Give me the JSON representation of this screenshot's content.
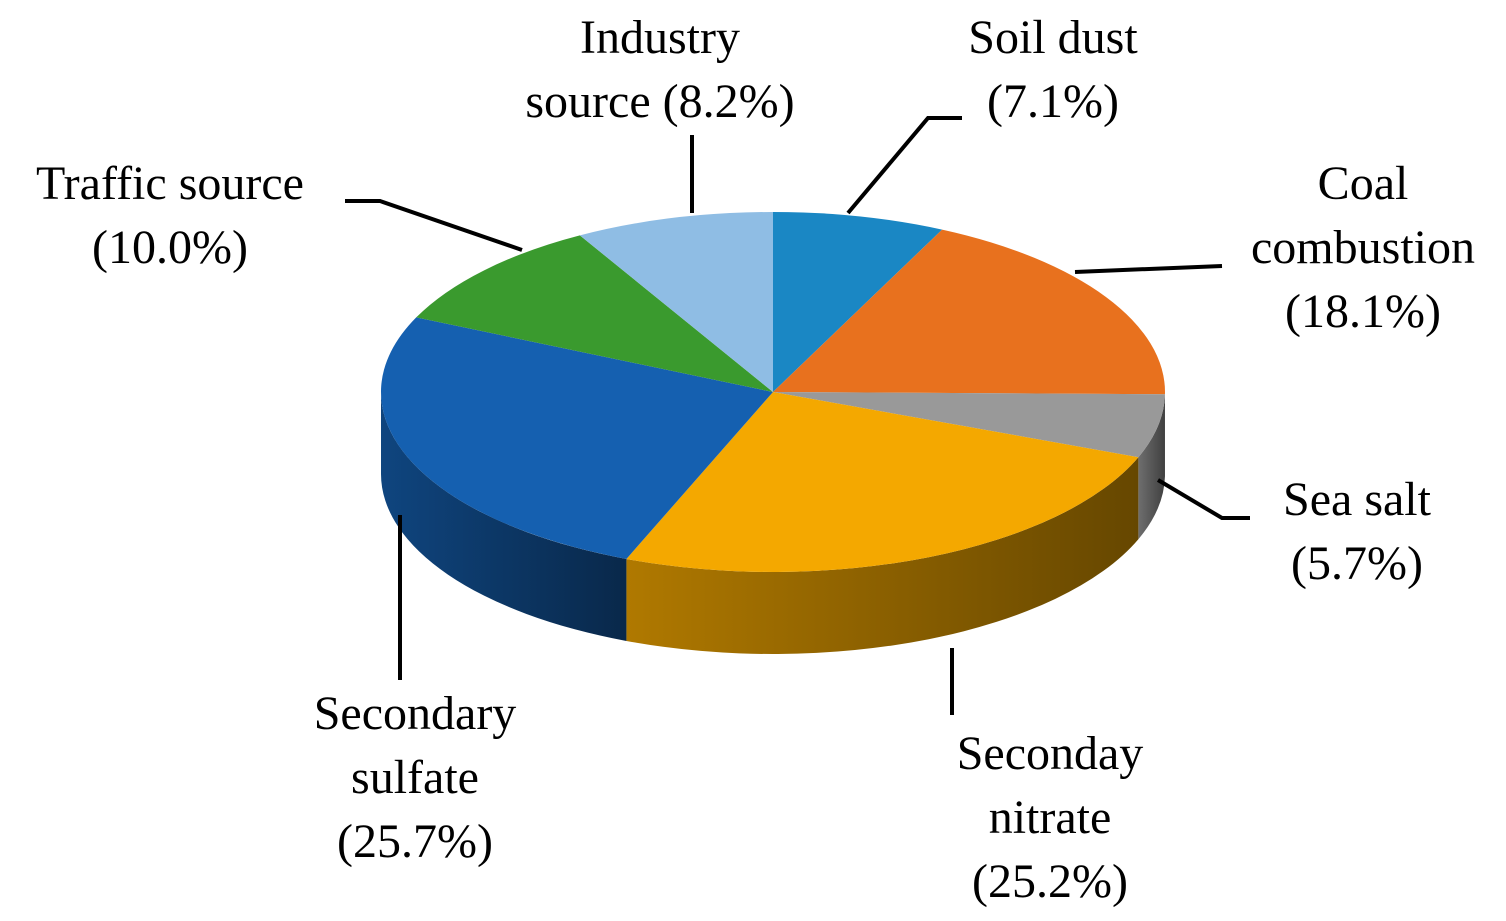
{
  "chart_data": {
    "type": "pie",
    "categories": [
      "Soil dust",
      "Coal combustion",
      "Sea salt",
      "Seconday nitrate",
      "Secondary sulfate",
      "Traffic source",
      "Industry source"
    ],
    "values": [
      7.1,
      18.1,
      5.7,
      25.2,
      25.7,
      10.0,
      8.2
    ],
    "value_labels": [
      "(7.1%)",
      "(18.1%)",
      "(5.7%)",
      "(25.2%)",
      "(25.7%)",
      "(10.0%)",
      "(8.2%)"
    ],
    "colors": [
      "#1a87c4",
      "#e8711e",
      "#999999",
      "#f4a800",
      "#1560b0",
      "#3a9a2e",
      "#8fbde4"
    ]
  }
}
